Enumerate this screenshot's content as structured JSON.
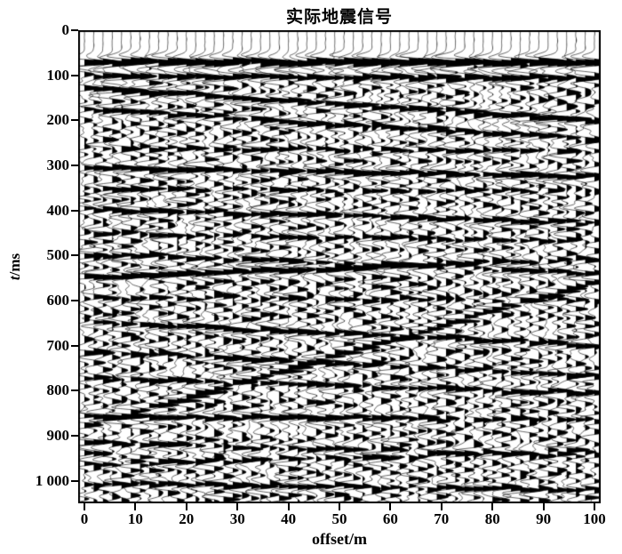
{
  "figure": {
    "title": "实际地震信号",
    "xlabel": "offset/m",
    "ylabel_var": "t",
    "ylabel_unit": "/ms"
  },
  "style": {
    "ink": "#000000",
    "background": "#ffffff"
  },
  "chart_data": {
    "type": "line",
    "subtype": "seismic wiggle variable-area section",
    "title": "实际地震信号",
    "xlabel": "offset/m",
    "ylabel": "t/ms",
    "xlim": [
      0,
      100
    ],
    "ylim": [
      0,
      1050
    ],
    "y_axis_reversed": true,
    "grid": false,
    "legend": false,
    "xticks": [
      0,
      10,
      20,
      30,
      40,
      50,
      60,
      70,
      80,
      90,
      100
    ],
    "xtick_labels": [
      "0",
      "10",
      "20",
      "30",
      "40",
      "50",
      "60",
      "70",
      "80",
      "90",
      "100"
    ],
    "yticks": [
      0,
      100,
      200,
      300,
      400,
      500,
      600,
      700,
      800,
      900,
      1000
    ],
    "ytick_labels": [
      "0",
      "100",
      "200",
      "300",
      "400",
      "500",
      "600",
      "700",
      "800",
      "900",
      "1 000"
    ],
    "n_traces": 56,
    "sample_ms": 1.5,
    "first_break_ms": 55,
    "fb_group": 5,
    "noise_amp": 0.85,
    "wavelet_hz": 38,
    "clip": 2.8,
    "seed": 1337,
    "events": [
      {
        "t0": 70,
        "t1": 72,
        "a0": 3.3,
        "a1": 3.3,
        "f": 30,
        "fb": true
      },
      {
        "t0": 103,
        "t1": 107,
        "a0": 1.8,
        "a1": 1.8,
        "f": 36,
        "fb": true
      },
      {
        "t0": 128,
        "t1": 202,
        "a0": 2.2,
        "a1": 2.0,
        "f": 40
      },
      {
        "t0": 176,
        "t1": 242,
        "a0": 1.7,
        "a1": 1.6,
        "f": 40
      },
      {
        "t0": 262,
        "t1": 268,
        "a0": 1.2,
        "a1": 1.2,
        "f": 42
      },
      {
        "t0": 306,
        "t1": 324,
        "a0": 2.1,
        "a1": 2.0,
        "f": 40
      },
      {
        "t0": 352,
        "t1": 358,
        "a0": 1.2,
        "a1": 1.1,
        "f": 42
      },
      {
        "t0": 396,
        "t1": 428,
        "a0": 2.0,
        "a1": 1.8,
        "f": 40
      },
      {
        "t0": 452,
        "t1": 468,
        "a0": 1.4,
        "a1": 1.3,
        "f": 40
      },
      {
        "t0": 497,
        "t1": 540,
        "a0": 1.5,
        "a1": 1.5,
        "f": 40
      },
      {
        "t0": 548,
        "t1": 506,
        "a0": 3.0,
        "a1": 1.1,
        "f": 38
      },
      {
        "t0": 594,
        "t1": 600,
        "a0": 1.1,
        "a1": 1.0,
        "f": 42
      },
      {
        "t0": 878,
        "t1": 556,
        "a0": 2.3,
        "a1": 2.3,
        "f": 40
      },
      {
        "t0": 648,
        "t1": 700,
        "a0": 1.7,
        "a1": 1.5,
        "f": 40
      },
      {
        "t0": 712,
        "t1": 768,
        "a0": 1.4,
        "a1": 1.3,
        "f": 40
      },
      {
        "t0": 772,
        "t1": 806,
        "a0": 1.6,
        "a1": 1.4,
        "f": 40
      },
      {
        "t0": 858,
        "t1": 864,
        "a0": 2.6,
        "a1": 0.9,
        "f": 38
      },
      {
        "t0": 914,
        "t1": 946,
        "a0": 1.3,
        "a1": 1.2,
        "f": 40
      },
      {
        "t0": 965,
        "t1": 932,
        "a0": 1.2,
        "a1": 1.2,
        "f": 42
      },
      {
        "t0": 1006,
        "t1": 1020,
        "a0": 1.6,
        "a1": 1.4,
        "f": 40
      }
    ]
  }
}
